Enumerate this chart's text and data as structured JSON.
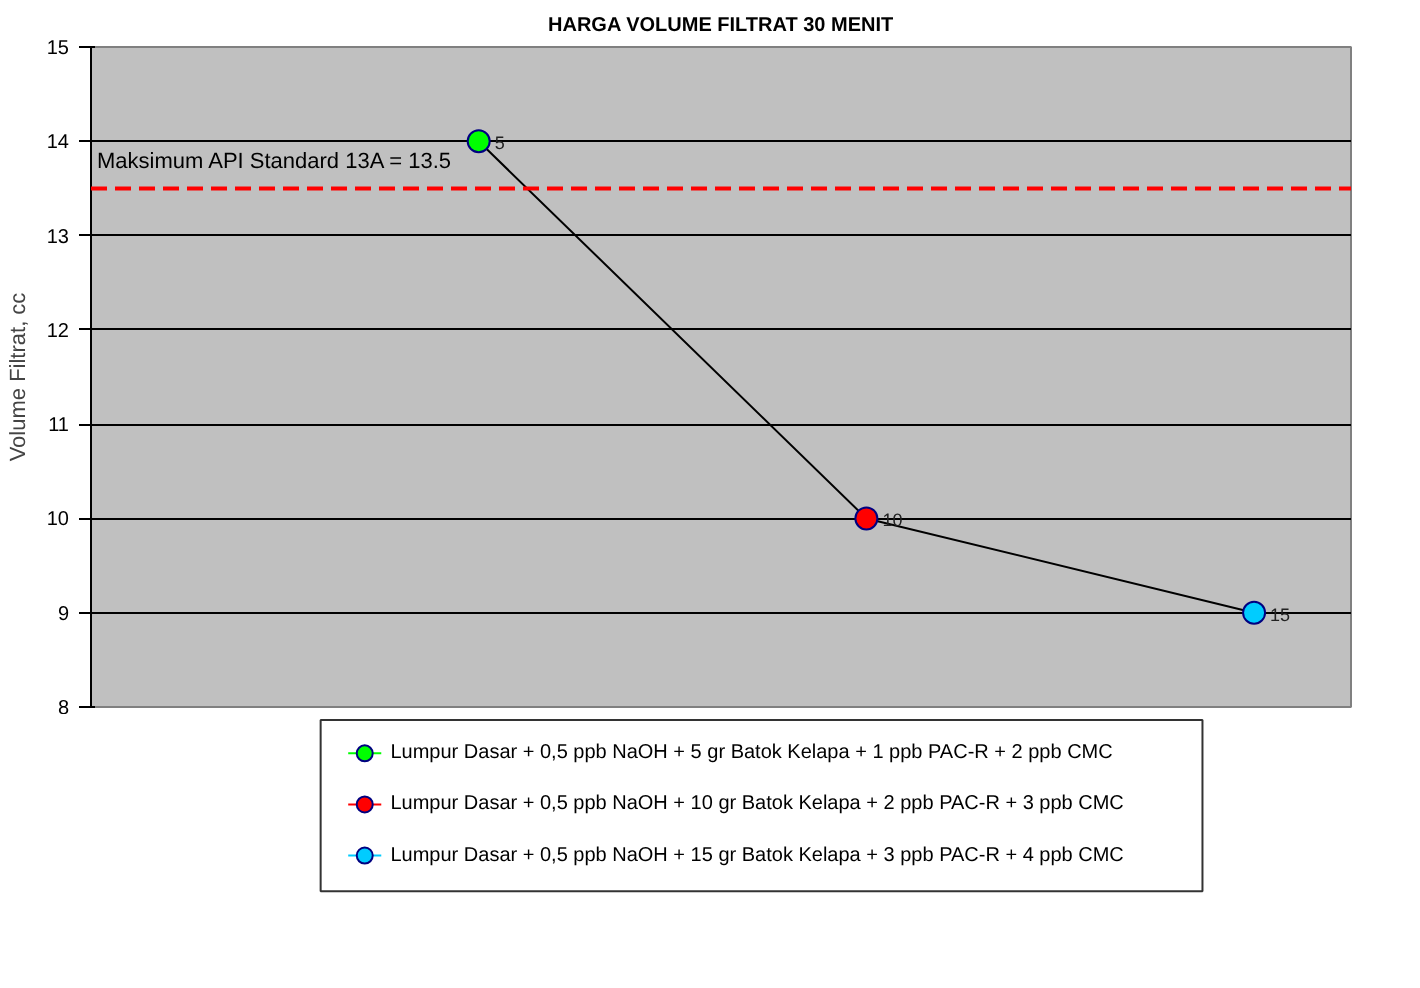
{
  "chart_data": {
    "type": "scatter",
    "title": "HARGA VOLUME FILTRAT 30 MENIT",
    "ylabel": "Volume Filtrat, cc",
    "categories": [
      null,
      null,
      null
    ],
    "ylim": [
      8,
      15
    ],
    "yticks": [
      8,
      9,
      10,
      11,
      12,
      13,
      14,
      15
    ],
    "tick_labels": "y",
    "grid": "y",
    "legend": "bottom",
    "marker": "circle",
    "series": [
      {
        "type": "line",
        "color": "#000000",
        "values": [
          14,
          10,
          9
        ],
        "marker": "none"
      },
      {
        "name": "Lumpur Dasar + 0,5 ppb NaOH + 5 gr Batok Kelapa + 1 ppb PAC-R + 2 ppb CMC",
        "color": "#00ff00",
        "values": [
          14,
          null,
          null
        ]
      },
      {
        "name": "Lumpur Dasar + 0,5 ppb NaOH + 10 gr Batok Kelapa + 2 ppb PAC-R + 3 ppb CMC",
        "color": "#ff0000",
        "values": [
          null,
          10,
          null
        ]
      },
      {
        "name": "Lumpur Dasar + 0,5 ppb NaOH + 15 gr Batok Kelapa + 3 ppb PAC-R + 4 ppb CMC",
        "color": "#00ccff",
        "values": [
          null,
          null,
          9
        ]
      }
    ],
    "annotations": [
      "5",
      "10",
      "15"
    ],
    "ref_lines": [
      {
        "axis": "y",
        "value": 13.5,
        "label": "Maksimum API Standard 13A = 13.5",
        "color": "#ff0000",
        "line_style": "dashed"
      }
    ]
  }
}
